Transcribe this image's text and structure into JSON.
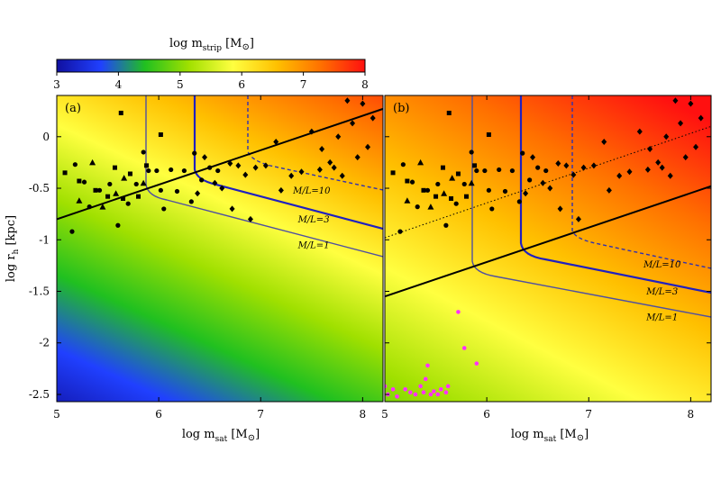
{
  "colorbar": {
    "label_main": "log m",
    "label_sub": "strip",
    "label_unit": "[M",
    "label_sun": "⊙",
    "label_close": "]",
    "ticks": [
      "3",
      "4",
      "5",
      "6",
      "7",
      "8"
    ],
    "range": [
      3,
      8
    ],
    "stops": [
      "#1010a0",
      "#2040ff",
      "#20c020",
      "#a0e000",
      "#ffff40",
      "#ffc000",
      "#ff7000",
      "#ff1010"
    ]
  },
  "chart_data": [
    {
      "type": "scatter",
      "panel_label": "(a)",
      "xlabel_main": "log m",
      "xlabel_sub": "sat",
      "xlabel_unit": "[M",
      "xlabel_sun": "⊙",
      "xlabel_close": "]",
      "ylabel_main": "log r",
      "ylabel_sub": "h",
      "ylabel_unit": "[kpc]",
      "xlim": [
        5,
        8.2
      ],
      "ylim": [
        -2.57,
        0.4
      ],
      "x_ticks": [
        "5",
        "6",
        "7",
        "8"
      ],
      "y_ticks": [
        "0",
        "-0.5",
        "-1",
        "-1.5",
        "-2",
        "-2.5"
      ],
      "y_tick_values": [
        0,
        -0.5,
        -1,
        -1.5,
        -2,
        -2.5
      ],
      "curve_labels": [
        {
          "text": "M/L=10",
          "x": 7.5,
          "y": -0.55
        },
        {
          "text": "M/L=3",
          "x": 7.52,
          "y": -0.83
        },
        {
          "text": "M/L=1",
          "x": 7.52,
          "y": -1.08
        }
      ],
      "diagonal_line": {
        "x": [
          5,
          8.2
        ],
        "y": [
          -0.8,
          0.27
        ]
      },
      "points_square": [
        [
          5.08,
          -0.35
        ],
        [
          5.22,
          -0.43
        ],
        [
          5.38,
          -0.52
        ],
        [
          5.5,
          -0.58
        ],
        [
          5.57,
          -0.3
        ],
        [
          5.63,
          0.23
        ],
        [
          5.65,
          -0.6
        ],
        [
          5.72,
          -0.36
        ],
        [
          5.8,
          -0.58
        ],
        [
          5.88,
          -0.28
        ],
        [
          6.02,
          0.02
        ]
      ],
      "points_triangle": [
        [
          5.22,
          -0.62
        ],
        [
          5.35,
          -0.25
        ],
        [
          5.45,
          -0.68
        ],
        [
          5.58,
          -0.55
        ],
        [
          5.66,
          -0.4
        ],
        [
          5.85,
          -0.45
        ]
      ],
      "points_circle": [
        [
          5.15,
          -0.92
        ],
        [
          5.18,
          -0.27
        ],
        [
          5.27,
          -0.44
        ],
        [
          5.32,
          -0.68
        ],
        [
          5.42,
          -0.52
        ],
        [
          5.52,
          -0.46
        ],
        [
          5.6,
          -0.86
        ],
        [
          5.7,
          -0.65
        ],
        [
          5.78,
          -0.46
        ],
        [
          5.85,
          -0.15
        ],
        [
          5.9,
          -0.33
        ],
        [
          5.98,
          -0.33
        ],
        [
          6.02,
          -0.52
        ],
        [
          6.05,
          -0.7
        ],
        [
          6.12,
          -0.32
        ],
        [
          6.18,
          -0.53
        ],
        [
          6.25,
          -0.33
        ],
        [
          6.32,
          -0.63
        ],
        [
          6.35,
          -0.16
        ],
        [
          6.42,
          -0.42
        ],
        [
          6.5,
          -0.3
        ],
        [
          6.58,
          -0.33
        ]
      ],
      "points_diamond": [
        [
          6.38,
          -0.55
        ],
        [
          6.45,
          -0.2
        ],
        [
          6.55,
          -0.45
        ],
        [
          6.62,
          -0.5
        ],
        [
          6.7,
          -0.26
        ],
        [
          6.72,
          -0.7
        ],
        [
          6.78,
          -0.28
        ],
        [
          6.85,
          -0.37
        ],
        [
          6.9,
          -0.8
        ],
        [
          6.95,
          -0.3
        ],
        [
          7.05,
          -0.28
        ],
        [
          7.15,
          -0.05
        ],
        [
          7.2,
          -0.52
        ],
        [
          7.3,
          -0.38
        ],
        [
          7.4,
          -0.34
        ],
        [
          7.5,
          0.05
        ],
        [
          7.58,
          -0.32
        ],
        [
          7.6,
          -0.12
        ],
        [
          7.68,
          -0.25
        ],
        [
          7.72,
          -0.3
        ],
        [
          7.76,
          0.0
        ],
        [
          7.8,
          -0.38
        ],
        [
          7.85,
          0.35
        ],
        [
          7.9,
          0.13
        ],
        [
          7.95,
          -0.2
        ],
        [
          8.0,
          0.32
        ],
        [
          8.05,
          -0.1
        ],
        [
          8.1,
          0.18
        ]
      ]
    },
    {
      "type": "scatter",
      "panel_label": "(b)",
      "xlabel_main": "log m",
      "xlabel_sub": "sat",
      "xlabel_unit": "[M",
      "xlabel_sun": "⊙",
      "xlabel_close": "]",
      "xlim": [
        5,
        8.2
      ],
      "ylim": [
        -2.57,
        0.4
      ],
      "x_ticks": [
        "5",
        "6",
        "7",
        "8"
      ],
      "curve_labels": [
        {
          "text": "M/L=10",
          "x": 7.72,
          "y": -1.27
        },
        {
          "text": "M/L=3",
          "x": 7.72,
          "y": -1.53
        },
        {
          "text": "M/L=1",
          "x": 7.72,
          "y": -1.78
        }
      ],
      "diagonal_line": {
        "x": [
          5,
          8.2
        ],
        "y": [
          -1.55,
          -0.48
        ]
      },
      "dotted_line": {
        "x": [
          5,
          8.2
        ],
        "y": [
          -0.98,
          0.1
        ]
      },
      "points_square": [
        [
          5.08,
          -0.35
        ],
        [
          5.22,
          -0.43
        ],
        [
          5.38,
          -0.52
        ],
        [
          5.5,
          -0.58
        ],
        [
          5.57,
          -0.3
        ],
        [
          5.63,
          0.23
        ],
        [
          5.65,
          -0.6
        ],
        [
          5.72,
          -0.36
        ],
        [
          5.8,
          -0.58
        ],
        [
          5.88,
          -0.28
        ],
        [
          6.02,
          0.02
        ]
      ],
      "points_triangle": [
        [
          5.22,
          -0.62
        ],
        [
          5.35,
          -0.25
        ],
        [
          5.45,
          -0.68
        ],
        [
          5.58,
          -0.55
        ],
        [
          5.66,
          -0.4
        ],
        [
          5.85,
          -0.45
        ]
      ],
      "points_circle": [
        [
          5.15,
          -0.92
        ],
        [
          5.18,
          -0.27
        ],
        [
          5.27,
          -0.44
        ],
        [
          5.32,
          -0.68
        ],
        [
          5.42,
          -0.52
        ],
        [
          5.52,
          -0.46
        ],
        [
          5.6,
          -0.86
        ],
        [
          5.7,
          -0.65
        ],
        [
          5.78,
          -0.46
        ],
        [
          5.85,
          -0.15
        ],
        [
          5.9,
          -0.33
        ],
        [
          5.98,
          -0.33
        ],
        [
          6.02,
          -0.52
        ],
        [
          6.05,
          -0.7
        ],
        [
          6.12,
          -0.32
        ],
        [
          6.18,
          -0.53
        ],
        [
          6.25,
          -0.33
        ],
        [
          6.32,
          -0.63
        ],
        [
          6.35,
          -0.16
        ],
        [
          6.42,
          -0.42
        ],
        [
          6.5,
          -0.3
        ],
        [
          6.58,
          -0.33
        ]
      ],
      "points_diamond": [
        [
          6.38,
          -0.55
        ],
        [
          6.45,
          -0.2
        ],
        [
          6.55,
          -0.45
        ],
        [
          6.62,
          -0.5
        ],
        [
          6.7,
          -0.26
        ],
        [
          6.72,
          -0.7
        ],
        [
          6.78,
          -0.28
        ],
        [
          6.85,
          -0.37
        ],
        [
          6.9,
          -0.8
        ],
        [
          6.95,
          -0.3
        ],
        [
          7.05,
          -0.28
        ],
        [
          7.15,
          -0.05
        ],
        [
          7.2,
          -0.52
        ],
        [
          7.3,
          -0.38
        ],
        [
          7.4,
          -0.34
        ],
        [
          7.5,
          0.05
        ],
        [
          7.58,
          -0.32
        ],
        [
          7.6,
          -0.12
        ],
        [
          7.68,
          -0.25
        ],
        [
          7.72,
          -0.3
        ],
        [
          7.76,
          0.0
        ],
        [
          7.8,
          -0.38
        ],
        [
          7.85,
          0.35
        ],
        [
          7.9,
          0.13
        ],
        [
          7.95,
          -0.2
        ],
        [
          8.0,
          0.32
        ],
        [
          8.05,
          -0.1
        ],
        [
          8.1,
          0.18
        ]
      ],
      "points_magenta": [
        [
          5.0,
          -2.42
        ],
        [
          5.03,
          -2.5
        ],
        [
          5.08,
          -2.45
        ],
        [
          5.12,
          -2.52
        ],
        [
          5.2,
          -2.45
        ],
        [
          5.25,
          -2.48
        ],
        [
          5.3,
          -2.5
        ],
        [
          5.35,
          -2.42
        ],
        [
          5.38,
          -2.48
        ],
        [
          5.4,
          -2.35
        ],
        [
          5.42,
          -2.22
        ],
        [
          5.45,
          -2.5
        ],
        [
          5.48,
          -2.47
        ],
        [
          5.52,
          -2.5
        ],
        [
          5.55,
          -2.45
        ],
        [
          5.6,
          -2.48
        ],
        [
          5.62,
          -2.42
        ],
        [
          5.72,
          -1.7
        ],
        [
          5.78,
          -2.05
        ],
        [
          5.9,
          -2.2
        ]
      ]
    }
  ]
}
